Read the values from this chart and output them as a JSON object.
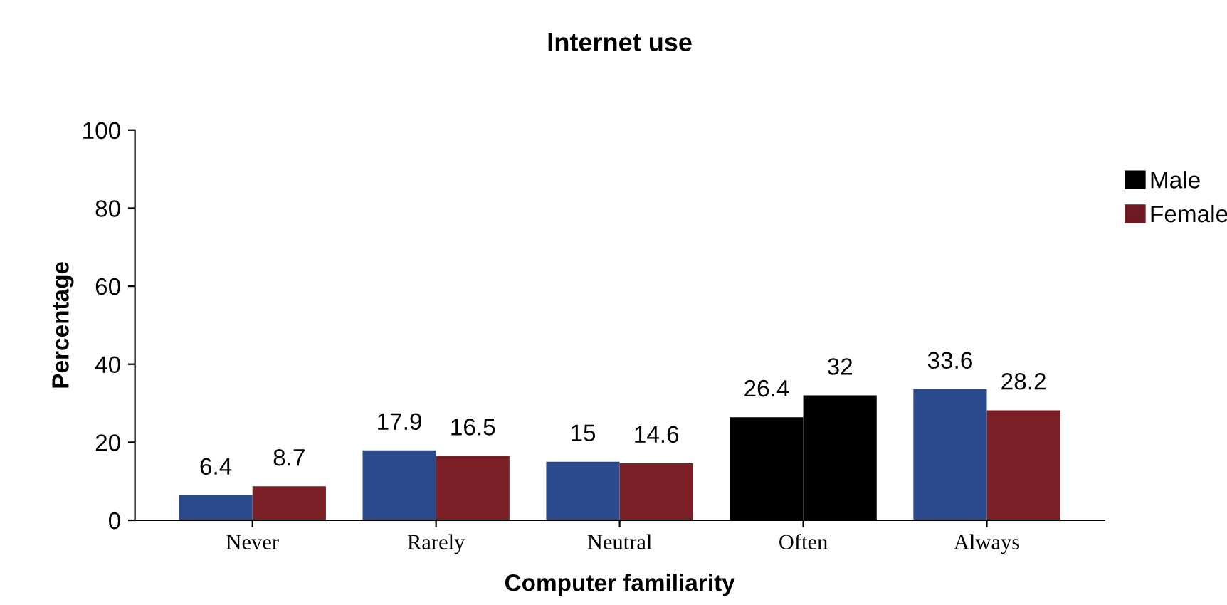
{
  "chart_data": {
    "type": "bar",
    "title": "Internet use",
    "xlabel": "Computer familiarity",
    "ylabel": "Percentage",
    "categories": [
      "Never",
      "Rarely",
      "Neutral",
      "Often",
      "Always"
    ],
    "series": [
      {
        "name": "Male",
        "color": "#000000",
        "colors": [
          "#2b4a8e",
          "#2b4a8e",
          "#2b4a8e",
          "#000000",
          "#2b4a8e"
        ],
        "values": [
          6.4,
          17.9,
          15,
          26.4,
          33.6
        ]
      },
      {
        "name": "Female",
        "color": "#6e1a22",
        "colors": [
          "#7a1f26",
          "#7a1f26",
          "#7a1f26",
          "#000000",
          "#7a1f26"
        ],
        "values": [
          8.7,
          16.5,
          14.6,
          32,
          28.2
        ]
      }
    ],
    "ylim": [
      0,
      100
    ],
    "yticks": [
      0,
      20,
      40,
      60,
      80,
      100
    ],
    "grid": false,
    "legend": "top right",
    "data_labels": true
  }
}
